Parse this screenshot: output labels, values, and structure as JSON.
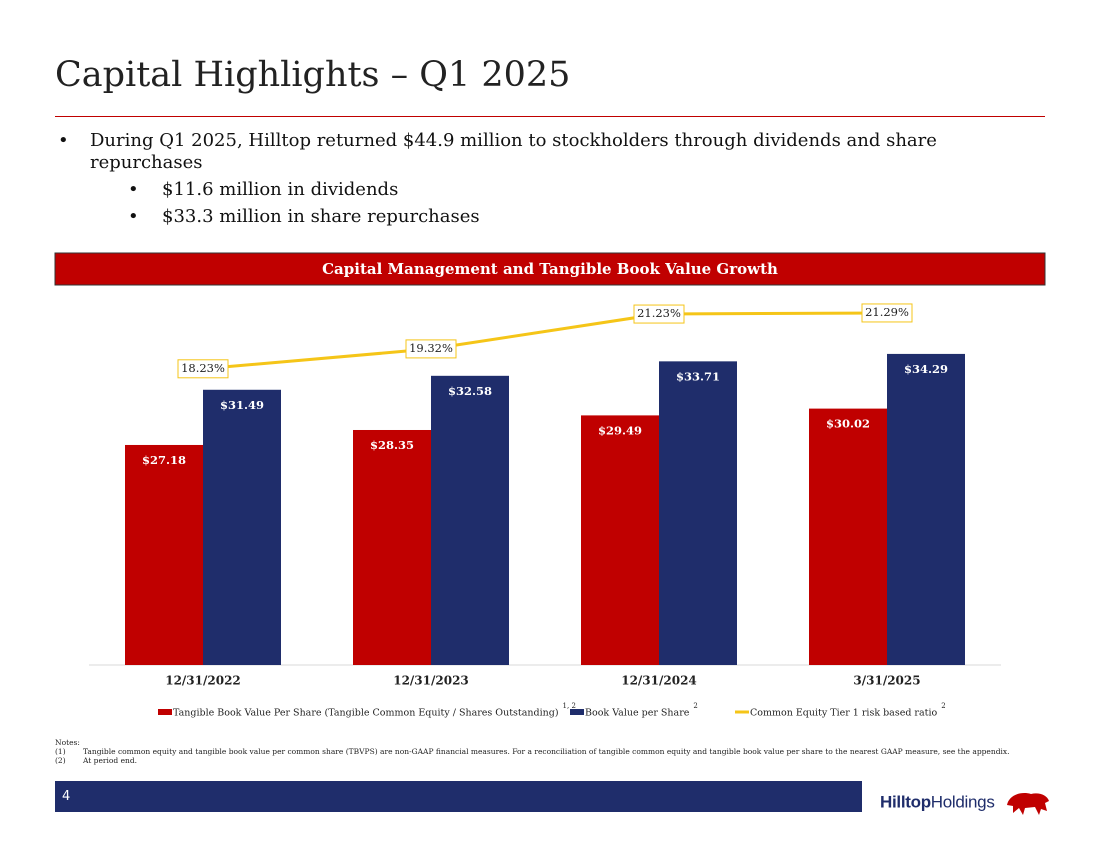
{
  "header": {
    "title": "Capital Highlights – Q1 2025"
  },
  "bullets": [
    {
      "text": "During Q1 2025, Hilltop returned $44.9 million to stockholders through dividends and share repurchases",
      "sub": [
        "$11.6 million in dividends",
        "$33.3 million in share repurchases"
      ]
    }
  ],
  "chart_data": {
    "type": "bar",
    "title": "Capital Management and Tangible Book Value Growth",
    "categories": [
      "12/31/2022",
      "12/31/2023",
      "12/31/2024",
      "3/31/2025"
    ],
    "ylim": [
      10,
      38.5
    ],
    "y2lim": [
      2,
      22
    ],
    "series": [
      {
        "name": "Tangible Book Value Per Share (Tangible Common Equity / Shares Outstanding)",
        "footnote_refs": "1, 2",
        "type": "bar",
        "color": "#c00000",
        "values": [
          27.18,
          28.35,
          29.49,
          30.02
        ],
        "value_labels": [
          "$27.18",
          "$28.35",
          "$29.49",
          "$30.02"
        ]
      },
      {
        "name": "Book Value per Share",
        "footnote_refs": "2",
        "type": "bar",
        "color": "#1f2d6b",
        "values": [
          31.49,
          32.58,
          33.71,
          34.29
        ],
        "value_labels": [
          "$31.49",
          "$32.58",
          "$33.71",
          "$34.29"
        ]
      },
      {
        "name": "Common Equity Tier 1 risk based ratio",
        "footnote_refs": "2",
        "type": "line",
        "axis": "y2",
        "color": "#f5c518",
        "values": [
          18.23,
          19.32,
          21.23,
          21.29
        ],
        "value_labels": [
          "18.23%",
          "19.32%",
          "21.23%",
          "21.29%"
        ]
      }
    ]
  },
  "notes": {
    "heading": "Notes:",
    "items": [
      {
        "marker": "(1)",
        "text": "Tangible common equity and tangible book value per common share (TBVPS) are non-GAAP financial measures. For a reconciliation of tangible common equity and tangible book value per share to the nearest GAAP measure, see the appendix."
      },
      {
        "marker": "(2)",
        "text": "At period end."
      }
    ]
  },
  "footer": {
    "page_number": "4",
    "logo_bold": "Hilltop",
    "logo_rest": "Holdings"
  }
}
